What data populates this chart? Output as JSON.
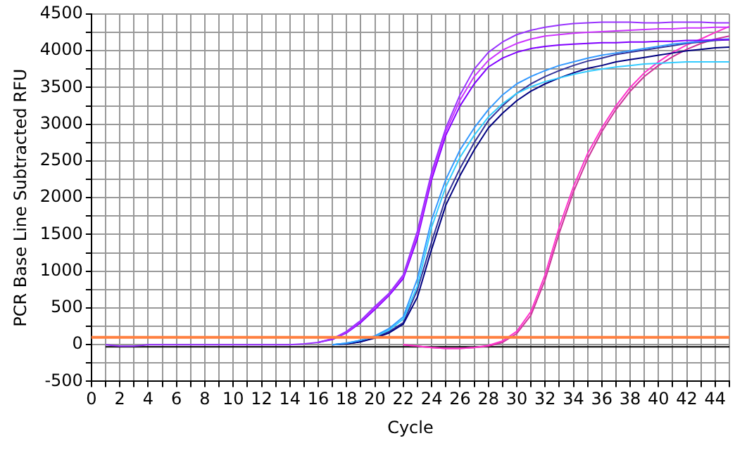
{
  "chart_data": {
    "type": "line",
    "xlabel": "Cycle",
    "ylabel": "PCR Base Line Subtracted RFU",
    "x": [
      1,
      2,
      3,
      4,
      5,
      6,
      7,
      8,
      9,
      10,
      11,
      12,
      13,
      14,
      15,
      16,
      17,
      18,
      19,
      20,
      21,
      22,
      23,
      24,
      25,
      26,
      27,
      28,
      29,
      30,
      31,
      32,
      33,
      34,
      35,
      36,
      37,
      38,
      39,
      40,
      41,
      42,
      43,
      44,
      45
    ],
    "series": [
      {
        "color": "#9933ff",
        "values": [
          0,
          -20,
          -20,
          0,
          0,
          0,
          0,
          0,
          0,
          0,
          0,
          0,
          0,
          0,
          10,
          30,
          80,
          180,
          330,
          520,
          700,
          950,
          1550,
          2350,
          2950,
          3400,
          3750,
          3980,
          4120,
          4220,
          4280,
          4320,
          4350,
          4370,
          4380,
          4390,
          4390,
          4390,
          4380,
          4380,
          4390,
          4390,
          4390,
          4380,
          4380
        ]
      },
      {
        "color": "#cc33ff",
        "values": [
          null,
          null,
          null,
          null,
          null,
          null,
          null,
          null,
          null,
          null,
          null,
          null,
          null,
          null,
          null,
          30,
          80,
          170,
          320,
          500,
          690,
          930,
          1500,
          2300,
          2900,
          3330,
          3650,
          3870,
          4010,
          4100,
          4160,
          4200,
          4220,
          4240,
          4250,
          4260,
          4270,
          4280,
          4290,
          4300,
          4300,
          4310,
          4310,
          4320,
          4320
        ]
      },
      {
        "color": "#8000ff",
        "values": [
          null,
          null,
          null,
          null,
          null,
          null,
          null,
          null,
          null,
          null,
          null,
          null,
          null,
          null,
          null,
          30,
          70,
          160,
          300,
          480,
          670,
          900,
          1450,
          2250,
          2850,
          3250,
          3550,
          3780,
          3900,
          3980,
          4030,
          4060,
          4080,
          4090,
          4100,
          4110,
          4110,
          4120,
          4120,
          4130,
          4130,
          4140,
          4140,
          4150,
          4150
        ]
      },
      {
        "color": "#3399ff",
        "values": [
          null,
          null,
          null,
          null,
          null,
          null,
          null,
          null,
          null,
          null,
          null,
          null,
          null,
          null,
          null,
          null,
          0,
          20,
          60,
          120,
          220,
          380,
          900,
          1700,
          2250,
          2650,
          2950,
          3200,
          3400,
          3550,
          3650,
          3730,
          3800,
          3850,
          3900,
          3940,
          3970,
          4000,
          4030,
          4060,
          4090,
          4110,
          4130,
          4150,
          4160
        ]
      },
      {
        "color": "#33ccff",
        "values": [
          null,
          null,
          null,
          null,
          null,
          null,
          null,
          null,
          null,
          null,
          null,
          null,
          null,
          null,
          null,
          null,
          0,
          20,
          60,
          110,
          200,
          350,
          800,
          1600,
          2150,
          2550,
          2850,
          3100,
          3280,
          3420,
          3510,
          3580,
          3630,
          3680,
          3720,
          3750,
          3780,
          3800,
          3820,
          3830,
          3840,
          3850,
          3850,
          3850,
          3850
        ]
      },
      {
        "color": "#000080",
        "values": [
          null,
          null,
          null,
          null,
          null,
          null,
          null,
          null,
          null,
          null,
          null,
          null,
          null,
          null,
          null,
          null,
          0,
          10,
          40,
          90,
          160,
          280,
          650,
          1300,
          1900,
          2300,
          2650,
          2950,
          3150,
          3320,
          3450,
          3550,
          3630,
          3700,
          3760,
          3800,
          3850,
          3880,
          3910,
          3940,
          3970,
          4000,
          4020,
          4040,
          4050
        ]
      },
      {
        "color": "#333399",
        "values": [
          null,
          null,
          null,
          null,
          null,
          null,
          null,
          null,
          null,
          null,
          null,
          null,
          null,
          null,
          null,
          null,
          0,
          10,
          40,
          100,
          180,
          300,
          750,
          1400,
          2000,
          2400,
          2750,
          3050,
          3250,
          3420,
          3550,
          3650,
          3730,
          3800,
          3860,
          3900,
          3950,
          3980,
          4010,
          4040,
          4070,
          4100,
          4120,
          4140,
          4150
        ]
      },
      {
        "color": "#ff33cc",
        "values": [
          null,
          null,
          null,
          null,
          null,
          null,
          null,
          null,
          null,
          null,
          null,
          null,
          null,
          null,
          null,
          null,
          null,
          null,
          null,
          null,
          null,
          0,
          -20,
          -40,
          -50,
          -50,
          -40,
          -10,
          50,
          180,
          450,
          950,
          1600,
          2150,
          2600,
          2950,
          3250,
          3500,
          3700,
          3850,
          3980,
          4080,
          4160,
          4250,
          4330
        ]
      },
      {
        "color": "#cc3399",
        "values": [
          null,
          null,
          null,
          null,
          null,
          null,
          null,
          null,
          null,
          null,
          null,
          null,
          null,
          null,
          null,
          null,
          null,
          null,
          null,
          null,
          null,
          0,
          -20,
          -40,
          -50,
          -50,
          -40,
          -20,
          30,
          150,
          400,
          880,
          1520,
          2080,
          2530,
          2900,
          3200,
          3450,
          3650,
          3800,
          3920,
          4020,
          4100,
          4160,
          4200
        ]
      },
      {
        "color": "#000000",
        "values": [
          -30,
          -30,
          -30,
          -30,
          -30,
          -30,
          -30,
          -30,
          -30,
          -30,
          -30,
          -30,
          -30,
          -30,
          -30,
          -30,
          -30,
          -30,
          -30,
          -30,
          -30,
          -30,
          -30,
          -30,
          -30,
          -30,
          -30,
          -30,
          -30,
          -30,
          -30,
          -30,
          -30,
          -30,
          -30,
          -30,
          -30,
          -30,
          -30,
          -30,
          -30,
          -30,
          -30,
          -30,
          -30
        ]
      }
    ],
    "xlim": [
      0,
      45
    ],
    "xticks": [
      0,
      {
        "value": 1,
        "label": null
      },
      2,
      {
        "value": 3,
        "label": null
      },
      4,
      {
        "value": 5,
        "label": null
      },
      6,
      {
        "value": 7,
        "label": null
      },
      8,
      {
        "value": 9,
        "label": null
      },
      10,
      {
        "value": 11,
        "label": null
      },
      12,
      {
        "value": 13,
        "label": null
      },
      14,
      {
        "value": 15,
        "label": null
      },
      16,
      {
        "value": 17,
        "label": null
      },
      18,
      {
        "value": 19,
        "label": null
      },
      20,
      {
        "value": 21,
        "label": null
      },
      22,
      {
        "value": 23,
        "label": null
      },
      24,
      {
        "value": 25,
        "label": null
      },
      26,
      {
        "value": 27,
        "label": null
      },
      28,
      {
        "value": 29,
        "label": null
      },
      30,
      {
        "value": 31,
        "label": null
      },
      32,
      {
        "value": 33,
        "label": null
      },
      34,
      {
        "value": 35,
        "label": null
      },
      36,
      {
        "value": 37,
        "label": null
      },
      38,
      {
        "value": 39,
        "label": null
      },
      40,
      {
        "value": 41,
        "label": null
      },
      42,
      {
        "value": 43,
        "label": null
      },
      44,
      {
        "value": 45,
        "label": null
      }
    ],
    "ylim": [
      -500,
      4500
    ],
    "yticks": [
      -500,
      {
        "value": -250,
        "label": null
      },
      0,
      {
        "value": 250,
        "label": null
      },
      500,
      {
        "value": 750,
        "label": null
      },
      1000,
      {
        "value": 1250,
        "label": null
      },
      1500,
      {
        "value": 1750,
        "label": null
      },
      2000,
      {
        "value": 2250,
        "label": null
      },
      2500,
      {
        "value": 2750,
        "label": null
      },
      3000,
      {
        "value": 3250,
        "label": null
      },
      3500,
      {
        "value": 3750,
        "label": null
      },
      4000,
      {
        "value": 4250,
        "label": null
      },
      4500
    ],
    "ref_lines": [
      {
        "axis": "y",
        "value": 100,
        "color": "#ff8040"
      }
    ],
    "grid": true,
    "legend": false,
    "marker": "none"
  }
}
